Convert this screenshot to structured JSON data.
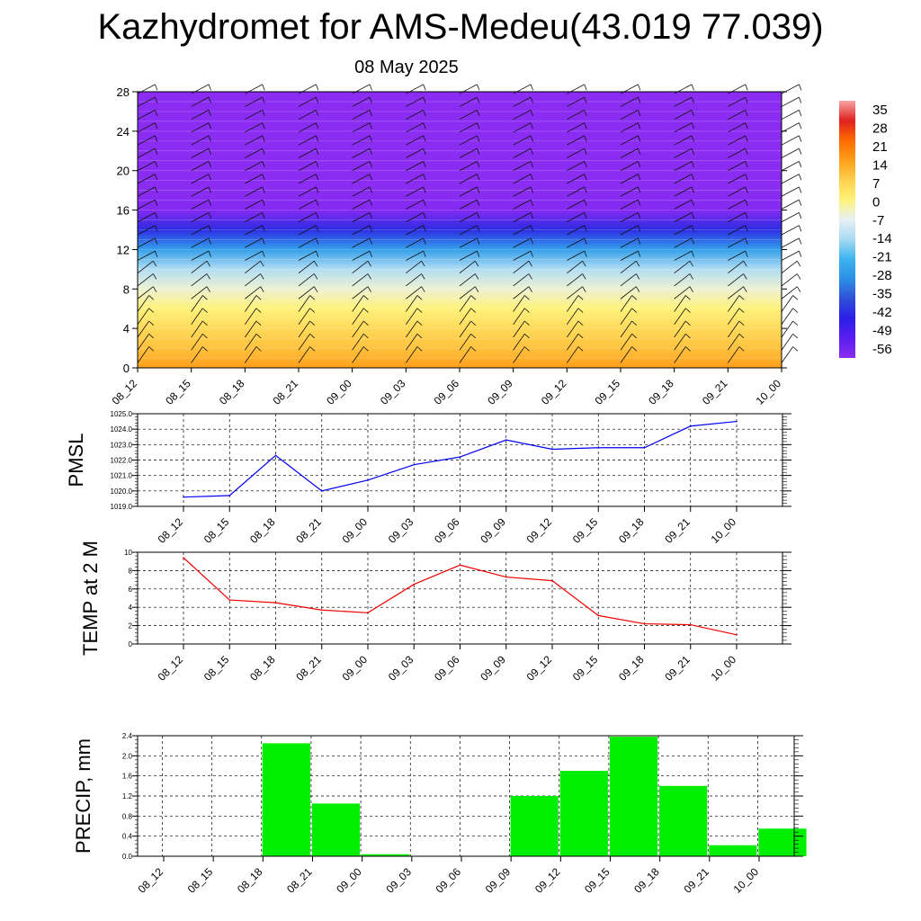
{
  "header": {
    "title": "Kazhydromet for AMS-Medeu(43.019 77.039)",
    "subtitle": "08 May 2025"
  },
  "time_labels": [
    "08_12",
    "08_15",
    "08_18",
    "08_21",
    "09_00",
    "09_03",
    "09_06",
    "09_09",
    "09_12",
    "09_15",
    "09_18",
    "09_21",
    "10_00"
  ],
  "colorbar": {
    "labels": [
      "35",
      "28",
      "21",
      "14",
      "7",
      "0",
      "-7",
      "-14",
      "-21",
      "-28",
      "-35",
      "-42",
      "-49",
      "-56"
    ],
    "colors": [
      "#f7a6a6",
      "#e02020",
      "#ff6a00",
      "#ff9f1a",
      "#ffd04d",
      "#fff27a",
      "#e6f1f6",
      "#a9daf2",
      "#3cb4f0",
      "#2c8fe6",
      "#3050d8",
      "#2a1ee8",
      "#5a1ef0",
      "#8a2cf2"
    ]
  },
  "chart_data": [
    {
      "type": "heatmap",
      "title": "",
      "ylabel": "",
      "ylim": [
        0,
        28
      ],
      "yticks": [
        "0",
        "4",
        "8",
        "12",
        "16",
        "20",
        "24",
        "28"
      ],
      "categories": [
        "08_12",
        "08_15",
        "08_18",
        "08_21",
        "09_00",
        "09_03",
        "09_06",
        "09_09",
        "09_12",
        "09_15",
        "09_18",
        "09_21",
        "10_00"
      ],
      "levels": [
        0,
        2,
        4,
        6,
        8,
        10,
        12,
        14,
        16,
        18,
        20,
        22,
        28
      ],
      "values": [
        [
          14,
          9,
          5,
          0,
          -5,
          -13,
          -25,
          -40,
          -55,
          -60,
          -57,
          -56,
          -56
        ]
      ],
      "colors": {
        "freezing_level_km": 9.5
      },
      "wind_barbs": true
    },
    {
      "type": "line",
      "ylabel": "PMSL",
      "ylim": [
        1019.0,
        1025.0
      ],
      "yticks": [
        "1019.0",
        "1020.0",
        "1021.0",
        "1022.0",
        "1023.0",
        "1024.0",
        "1025.0"
      ],
      "categories": [
        "08_12",
        "08_15",
        "08_18",
        "08_21",
        "09_00",
        "09_03",
        "09_06",
        "09_09",
        "09_12",
        "09_15",
        "09_18",
        "09_21",
        "10_00"
      ],
      "values": [
        1019.6,
        1019.7,
        1022.3,
        1020.0,
        1020.7,
        1021.7,
        1022.2,
        1023.3,
        1022.7,
        1022.8,
        1022.8,
        1024.2,
        1024.5
      ],
      "color": "#0000ee"
    },
    {
      "type": "line",
      "ylabel": "TEMP at 2 M",
      "ylim": [
        0,
        10
      ],
      "yticks": [
        "0",
        "2",
        "4",
        "6",
        "8",
        "10"
      ],
      "categories": [
        "08_12",
        "08_15",
        "08_18",
        "08_21",
        "09_00",
        "09_03",
        "09_06",
        "09_09",
        "09_12",
        "09_15",
        "09_18",
        "09_21",
        "10_00"
      ],
      "values": [
        9.4,
        4.8,
        4.5,
        3.7,
        3.4,
        6.5,
        8.6,
        7.3,
        6.9,
        3.1,
        2.2,
        2.1,
        1.0
      ],
      "color": "#ee0000"
    },
    {
      "type": "bar",
      "ylabel": "PRECIP, mm",
      "ylim": [
        0,
        2.4
      ],
      "yticks": [
        "0.0",
        "0.4",
        "0.8",
        "1.2",
        "1.6",
        "2.0",
        "2.4"
      ],
      "categories": [
        "08_12",
        "08_15",
        "08_18",
        "08_21",
        "09_00",
        "09_03",
        "09_06",
        "09_09",
        "09_12",
        "09_15",
        "09_18",
        "09_21",
        "10_00"
      ],
      "values": [
        0,
        0,
        2.25,
        1.05,
        0.04,
        0,
        0,
        1.2,
        1.7,
        2.38,
        1.4,
        0.22,
        0.55
      ],
      "color": "#00ee00"
    }
  ]
}
